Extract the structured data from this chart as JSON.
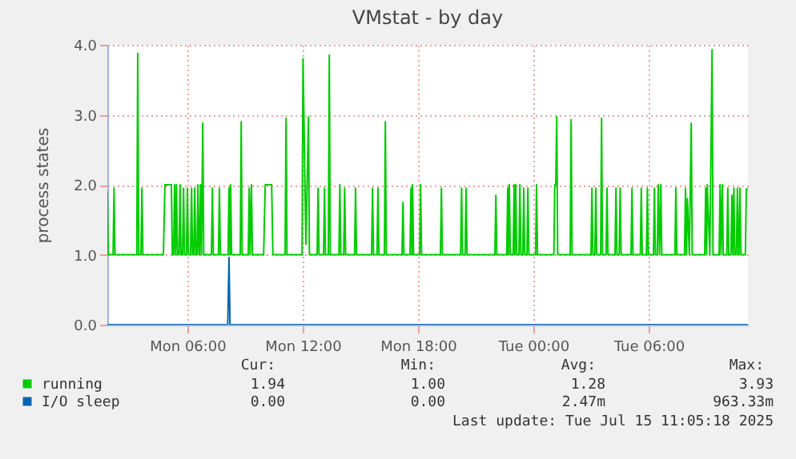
{
  "chart_data": {
    "type": "line",
    "title": "VMstat - by day",
    "ylabel": "process states",
    "xlim": [
      "2025-07-14T01:50",
      "2025-07-15T11:10"
    ],
    "ylim": [
      0,
      4
    ],
    "xticks": [
      {
        "value": "2025-07-14T06:00",
        "label": "Mon 06:00"
      },
      {
        "value": "2025-07-14T12:00",
        "label": "Mon 12:00"
      },
      {
        "value": "2025-07-14T18:00",
        "label": "Mon 18:00"
      },
      {
        "value": "2025-07-15T00:00",
        "label": "Tue 00:00"
      },
      {
        "value": "2025-07-15T06:00",
        "label": "Tue 06:00"
      }
    ],
    "yticks": [
      {
        "value": 0,
        "label": "0.0"
      },
      {
        "value": 1,
        "label": "1.0"
      },
      {
        "value": 2,
        "label": "2.0"
      },
      {
        "value": 3,
        "label": "3.0"
      },
      {
        "value": 4,
        "label": "4.0"
      }
    ],
    "grid": true,
    "legend": "bottom",
    "series": [
      {
        "name": "running",
        "color": "#00cc00",
        "x": [
          "2025-07-14T01:50",
          "2025-07-14T01:53",
          "2025-07-14T02:08",
          "2025-07-14T02:11",
          "2025-07-14T02:14",
          "2025-07-14T03:22",
          "2025-07-14T03:25",
          "2025-07-14T03:28",
          "2025-07-14T03:35",
          "2025-07-14T03:38",
          "2025-07-14T03:41",
          "2025-07-14T04:45",
          "2025-07-14T04:50",
          "2025-07-14T05:10",
          "2025-07-14T05:13",
          "2025-07-14T05:17",
          "2025-07-14T05:20",
          "2025-07-14T05:23",
          "2025-07-14T05:26",
          "2025-07-14T05:29",
          "2025-07-14T05:34",
          "2025-07-14T05:37",
          "2025-07-14T05:40",
          "2025-07-14T05:45",
          "2025-07-14T05:48",
          "2025-07-14T05:51",
          "2025-07-14T05:57",
          "2025-07-14T06:00",
          "2025-07-14T06:03",
          "2025-07-14T06:10",
          "2025-07-14T06:13",
          "2025-07-14T06:16",
          "2025-07-14T06:20",
          "2025-07-14T06:23",
          "2025-07-14T06:26",
          "2025-07-14T06:30",
          "2025-07-14T06:33",
          "2025-07-14T06:36",
          "2025-07-14T06:38",
          "2025-07-14T06:41",
          "2025-07-14T06:44",
          "2025-07-14T06:48",
          "2025-07-14T06:51",
          "2025-07-14T07:15",
          "2025-07-14T07:18",
          "2025-07-14T07:21",
          "2025-07-14T07:37",
          "2025-07-14T07:40",
          "2025-07-14T07:43",
          "2025-07-14T08:07",
          "2025-07-14T08:10",
          "2025-07-14T08:13",
          "2025-07-14T08:15",
          "2025-07-14T08:18",
          "2025-07-14T08:45",
          "2025-07-14T08:48",
          "2025-07-14T08:51",
          "2025-07-14T09:10",
          "2025-07-14T09:13",
          "2025-07-14T09:16",
          "2025-07-14T09:20",
          "2025-07-14T09:23",
          "2025-07-14T09:58",
          "2025-07-14T10:03",
          "2025-07-14T10:23",
          "2025-07-14T10:27",
          "2025-07-14T11:05",
          "2025-07-14T11:08",
          "2025-07-14T11:11",
          "2025-07-14T11:58",
          "2025-07-14T12:01",
          "2025-07-14T12:10",
          "2025-07-14T12:18",
          "2025-07-14T12:21",
          "2025-07-14T12:45",
          "2025-07-14T12:48",
          "2025-07-14T12:51",
          "2025-07-14T13:05",
          "2025-07-14T13:08",
          "2025-07-14T13:11",
          "2025-07-14T13:20",
          "2025-07-14T13:23",
          "2025-07-14T13:26",
          "2025-07-14T13:53",
          "2025-07-14T13:56",
          "2025-07-14T13:59",
          "2025-07-14T14:08",
          "2025-07-14T14:11",
          "2025-07-14T14:14",
          "2025-07-14T14:42",
          "2025-07-14T14:45",
          "2025-07-14T14:48",
          "2025-07-14T15:35",
          "2025-07-14T15:38",
          "2025-07-14T15:41",
          "2025-07-14T15:52",
          "2025-07-14T15:55",
          "2025-07-14T15:58",
          "2025-07-14T16:15",
          "2025-07-14T16:18",
          "2025-07-14T16:21",
          "2025-07-14T17:10",
          "2025-07-14T17:13",
          "2025-07-14T17:16",
          "2025-07-14T17:35",
          "2025-07-14T17:38",
          "2025-07-14T17:41",
          "2025-07-14T17:43",
          "2025-07-14T17:46",
          "2025-07-14T18:05",
          "2025-07-14T18:08",
          "2025-07-14T18:11",
          "2025-07-14T19:10",
          "2025-07-14T19:13",
          "2025-07-14T19:16",
          "2025-07-14T20:13",
          "2025-07-14T20:16",
          "2025-07-14T20:19",
          "2025-07-14T20:27",
          "2025-07-14T20:30",
          "2025-07-14T20:33",
          "2025-07-14T22:00",
          "2025-07-14T22:03",
          "2025-07-14T22:06",
          "2025-07-14T22:37",
          "2025-07-14T22:40",
          "2025-07-14T22:42",
          "2025-07-14T22:45",
          "2025-07-14T22:48",
          "2025-07-14T22:57",
          "2025-07-14T23:00",
          "2025-07-14T23:02",
          "2025-07-14T23:05",
          "2025-07-14T23:08",
          "2025-07-14T23:15",
          "2025-07-14T23:18",
          "2025-07-14T23:21",
          "2025-07-14T23:27",
          "2025-07-14T23:30",
          "2025-07-14T23:33",
          "2025-07-14T23:40",
          "2025-07-14T23:43",
          "2025-07-14T23:46",
          "2025-07-15T00:07",
          "2025-07-15T00:10",
          "2025-07-15T00:13",
          "2025-07-15T01:04",
          "2025-07-15T01:07",
          "2025-07-15T01:10",
          "2025-07-15T01:13",
          "2025-07-15T01:16",
          "2025-07-15T01:55",
          "2025-07-15T01:58",
          "2025-07-15T02:01",
          "2025-07-15T03:00",
          "2025-07-15T03:03",
          "2025-07-15T03:06",
          "2025-07-15T03:12",
          "2025-07-15T03:15",
          "2025-07-15T03:18",
          "2025-07-15T03:30",
          "2025-07-15T03:33",
          "2025-07-15T03:36",
          "2025-07-15T03:47",
          "2025-07-15T03:50",
          "2025-07-15T03:53",
          "2025-07-15T04:15",
          "2025-07-15T04:18",
          "2025-07-15T04:21",
          "2025-07-15T04:28",
          "2025-07-15T04:31",
          "2025-07-15T04:34",
          "2025-07-15T05:05",
          "2025-07-15T05:08",
          "2025-07-15T05:11",
          "2025-07-15T05:34",
          "2025-07-15T05:37",
          "2025-07-15T05:40",
          "2025-07-15T05:53",
          "2025-07-15T05:56",
          "2025-07-15T05:59",
          "2025-07-15T06:15",
          "2025-07-15T06:18",
          "2025-07-15T06:21",
          "2025-07-15T06:27",
          "2025-07-15T06:30",
          "2025-07-15T06:34",
          "2025-07-15T06:38",
          "2025-07-15T06:41",
          "2025-07-15T07:22",
          "2025-07-15T07:25",
          "2025-07-15T07:28",
          "2025-07-15T07:52",
          "2025-07-15T07:55",
          "2025-07-15T07:58",
          "2025-07-15T08:01",
          "2025-07-15T08:07",
          "2025-07-15T08:13",
          "2025-07-15T08:16",
          "2025-07-15T08:55",
          "2025-07-15T08:58",
          "2025-07-15T09:01",
          "2025-07-15T09:03",
          "2025-07-15T09:11",
          "2025-07-15T09:18",
          "2025-07-15T09:21",
          "2025-07-15T09:40",
          "2025-07-15T09:43",
          "2025-07-15T09:46",
          "2025-07-15T09:50",
          "2025-07-15T09:53",
          "2025-07-15T10:04",
          "2025-07-15T10:07",
          "2025-07-15T10:10",
          "2025-07-15T10:17",
          "2025-07-15T10:20",
          "2025-07-15T10:23",
          "2025-07-15T10:26",
          "2025-07-15T10:29",
          "2025-07-15T10:34",
          "2025-07-15T10:37",
          "2025-07-15T10:40",
          "2025-07-15T10:42",
          "2025-07-15T10:45",
          "2025-07-15T10:48",
          "2025-07-15T11:02",
          "2025-07-15T11:05",
          "2025-07-15T11:10"
        ],
        "values": [
          1.9,
          1,
          1,
          1.95,
          1,
          1,
          3.88,
          1,
          1,
          1.95,
          1,
          1,
          2,
          2,
          1,
          1,
          2,
          1,
          2,
          1,
          1,
          2,
          1,
          1,
          1.95,
          1,
          1,
          1.95,
          1,
          1,
          1.95,
          1,
          1,
          1.95,
          1,
          1,
          2,
          1,
          1,
          2,
          1,
          2.88,
          1,
          1,
          1.95,
          1,
          1,
          1.95,
          1,
          1,
          1.95,
          1,
          2,
          1,
          1,
          2.9,
          1,
          1,
          1.95,
          1,
          2,
          1,
          1,
          2,
          2,
          1,
          1,
          2.95,
          1,
          1,
          3.8,
          1.15,
          2.97,
          1,
          1,
          1.95,
          1,
          1,
          1.95,
          1,
          1,
          3.85,
          1,
          1,
          2,
          1,
          1,
          1.95,
          1,
          1,
          1.95,
          1,
          1,
          1.95,
          1,
          1,
          1.95,
          1,
          1,
          2.9,
          1,
          1,
          1.75,
          1,
          1,
          1.95,
          1,
          2,
          1,
          1,
          2,
          1,
          1,
          1.95,
          1,
          1,
          1.95,
          1,
          1,
          1.95,
          1,
          1,
          1.85,
          1,
          1,
          1.95,
          1,
          2,
          1,
          1,
          2,
          1,
          2,
          1,
          1,
          2,
          1,
          1,
          1.95,
          1,
          1,
          1.95,
          1,
          1,
          2,
          1,
          1,
          2,
          2,
          2.97,
          1,
          1,
          2.93,
          1,
          1,
          1.95,
          1,
          1,
          1.95,
          1,
          1,
          2.95,
          1,
          1,
          1.95,
          1,
          1,
          1.95,
          1,
          1,
          1.95,
          1,
          1,
          1.95,
          1,
          1,
          1.95,
          1,
          1,
          1.95,
          1,
          1,
          1.95,
          1,
          1,
          2,
          1,
          2,
          1,
          1,
          1.95,
          1,
          1,
          1.95,
          1,
          1.8,
          1,
          2.88,
          1,
          1,
          1.95,
          1,
          2,
          1,
          3.93,
          1,
          1,
          2,
          1,
          2,
          1,
          1,
          1.95,
          1,
          1,
          1.85,
          1,
          1.95,
          1,
          1,
          1.95,
          1,
          1,
          1.95,
          1,
          1,
          1.94,
          1.94
        ]
      },
      {
        "name": "I/O sleep",
        "color": "#0066b3",
        "x": [
          "2025-07-14T01:50",
          "2025-07-14T08:06",
          "2025-07-14T08:10",
          "2025-07-14T08:13",
          "2025-07-15T11:10"
        ],
        "values": [
          0,
          0,
          0.96,
          0,
          0
        ]
      }
    ],
    "annotations": [
      "Cur:",
      "Min:",
      "Avg:",
      "Max:",
      "1.94",
      "1.00",
      "1.28",
      "3.93",
      "0.00",
      "0.00",
      "2.47m",
      "963.33m",
      "Last update: Tue Jul 15 11:05:18 2025"
    ]
  }
}
